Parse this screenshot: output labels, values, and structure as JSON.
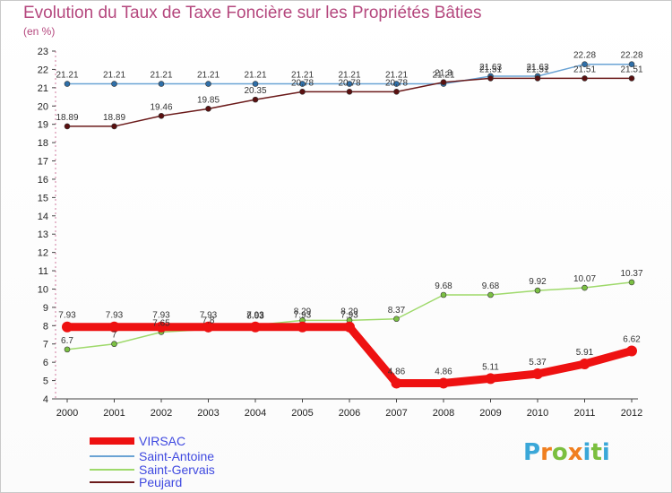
{
  "page": {
    "title": "Evolution du Taux de Taxe Foncière sur les Propriétés Bâties",
    "subtitle": "(en %)"
  },
  "logo": {
    "text": "Proxiti",
    "colors": [
      "#3aa7d8",
      "#f07f1f",
      "#7bbf3f",
      "#f07f1f",
      "#3aa7d8",
      "#7bbf3f",
      "#3aa7d8"
    ]
  },
  "chart_data": {
    "type": "line",
    "title": "Evolution du Taux de Taxe Foncière sur les Propriétés Bâties",
    "ylabel": "(en %)",
    "xlabel": "",
    "ylim": [
      4,
      23
    ],
    "yticks": [
      4,
      5,
      6,
      7,
      8,
      9,
      10,
      11,
      12,
      13,
      14,
      15,
      16,
      17,
      18,
      19,
      20,
      21,
      22,
      23
    ],
    "x": [
      "2000",
      "2001",
      "2002",
      "2003",
      "2004",
      "2005",
      "2006",
      "2007",
      "2008",
      "2009",
      "2010",
      "2011",
      "2012"
    ],
    "grid": false,
    "legend_position": "bottom-left",
    "series": [
      {
        "name": "VIRSAC",
        "color": "#ee1111",
        "width": 9,
        "values": [
          7.93,
          7.93,
          7.93,
          7.93,
          7.93,
          7.93,
          7.93,
          4.86,
          4.86,
          5.11,
          5.37,
          5.91,
          6.62
        ],
        "labels": [
          "7.93",
          "7.93",
          "7.93",
          "7.93",
          "7.93",
          "7.93",
          "7.93",
          "4.86",
          "4.86",
          "5.11",
          "5.37",
          "5.91",
          "6.62"
        ]
      },
      {
        "name": "Saint-Antoine",
        "color": "#6aa3d4",
        "width": 1.5,
        "values": [
          21.21,
          21.21,
          21.21,
          21.21,
          21.21,
          21.21,
          21.21,
          21.21,
          21.21,
          21.63,
          21.63,
          22.28,
          22.28
        ],
        "labels": [
          "21.21",
          "21.21",
          "21.21",
          "21.21",
          "21.21",
          "21.21",
          "21.21",
          "21.21",
          "21.21",
          "21.63",
          "21.63",
          "22.28",
          "22.28"
        ]
      },
      {
        "name": "Saint-Gervais",
        "color": "#9ed96a",
        "width": 1.5,
        "values": [
          6.7,
          7,
          7.65,
          7.8,
          8.03,
          8.29,
          8.29,
          8.37,
          9.68,
          9.68,
          9.92,
          10.07,
          10.37
        ],
        "labels": [
          "6.7",
          "7",
          "7.65",
          "7.8",
          "8.03",
          "8.29",
          "8.29",
          "8.37",
          "9.68",
          "9.68",
          "9.92",
          "10.07",
          "10.37"
        ]
      },
      {
        "name": "Peujard",
        "color": "#6b1a1a",
        "width": 1.5,
        "values": [
          18.89,
          18.89,
          19.46,
          19.85,
          20.35,
          20.78,
          20.78,
          20.78,
          21.3,
          21.51,
          21.51,
          21.51,
          21.51
        ],
        "labels": [
          "18.89",
          "18.89",
          "19.46",
          "19.85",
          "20.35",
          "20.78",
          "20.78",
          "20.78",
          "21.3",
          "21.51",
          "21.51",
          "21.51",
          "21.51"
        ]
      }
    ]
  }
}
